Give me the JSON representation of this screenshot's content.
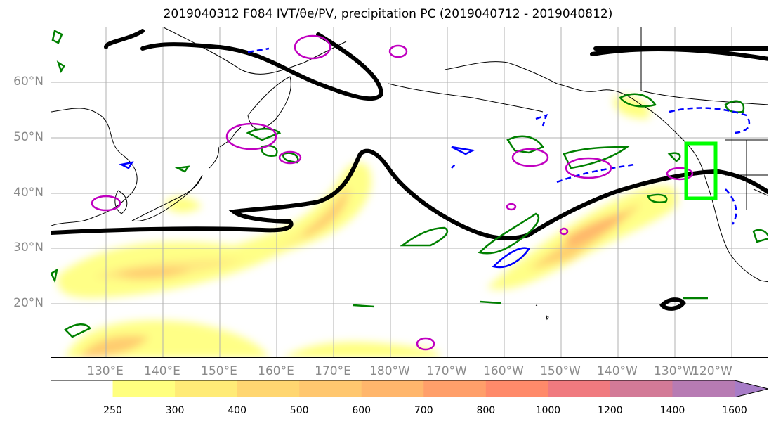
{
  "title": "2019040312 F084 IVT/θe/PV, precipitation PC (2019040712 - 2019040812)",
  "lat_labels": [
    "60°N",
    "50°N",
    "40°N",
    "30°N",
    "20°N"
  ],
  "lon_labels": [
    "130°E",
    "140°E",
    "150°E",
    "160°E",
    "170°E",
    "180°W",
    "170°W",
    "160°W",
    "150°W",
    "140°W",
    "130°W",
    "120°W"
  ],
  "colorbar": {
    "ticks": [
      "250",
      "300",
      "400",
      "500",
      "600",
      "700",
      "800",
      "1000",
      "1200",
      "1400",
      "1600"
    ],
    "colors": [
      "#ffffff",
      "#ffff7f",
      "#ffeb77",
      "#ffd671",
      "#ffc76f",
      "#ffb66c",
      "#ff9f6a",
      "#ff8a6a",
      "#f07a7f",
      "#d37a97",
      "#b77bb3",
      "#a77cc7"
    ]
  },
  "colors": {
    "theta_e_positive": "#008000",
    "theta_e_negative": "#0000ff",
    "pv": "#c000c0",
    "ivt_contour": "#000000",
    "target_box": "#00ff00"
  }
}
